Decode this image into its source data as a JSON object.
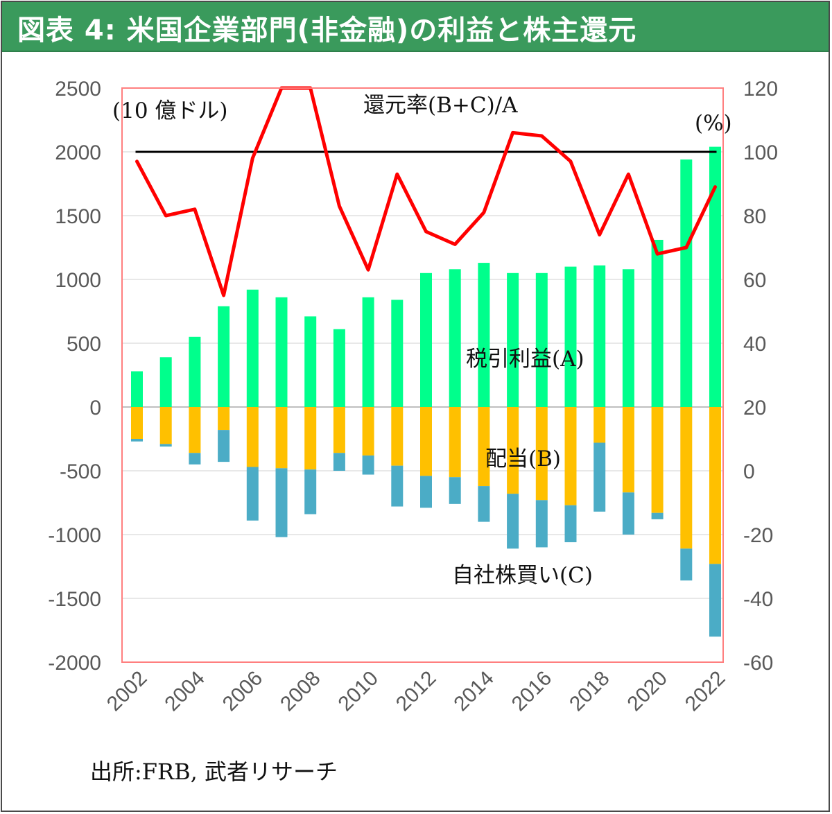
{
  "title": "図表 4: 米国企業部門(非金融)の利益と株主還元",
  "source": "出所:FRB, 武者リサーチ",
  "colors": {
    "title_bg": "#3a9a5c",
    "profit": "#00ff8c",
    "dividend": "#ffc000",
    "buyback": "#4bacc6",
    "ratio_line": "#ff0000",
    "reference_line": "#000000",
    "plot_border": "#ff7f7f"
  },
  "chart_data": {
    "type": "bar",
    "stacked": true,
    "x": [
      2002,
      2003,
      2004,
      2005,
      2006,
      2007,
      2008,
      2009,
      2010,
      2011,
      2012,
      2013,
      2014,
      2015,
      2016,
      2017,
      2018,
      2019,
      2020,
      2021,
      2022
    ],
    "x_tick_labels": [
      "2002",
      "2004",
      "2006",
      "2008",
      "2010",
      "2012",
      "2014",
      "2016",
      "2018",
      "2020",
      "2022"
    ],
    "left_axis": {
      "unit": "(10 億ドル)",
      "ylim": [
        -2000,
        2500
      ],
      "ticks": [
        "2500",
        "2000",
        "1500",
        "1000",
        "500",
        "0",
        "-500",
        "-1000",
        "-1500",
        "-2000"
      ]
    },
    "right_axis": {
      "unit": "(%)",
      "ylim": [
        -60,
        120
      ],
      "ticks": [
        "120",
        "100",
        "80",
        "60",
        "40",
        "20",
        "0",
        "-20",
        "-40",
        "-60"
      ]
    },
    "series": [
      {
        "name": "税引利益(A)",
        "type": "bar",
        "axis": "left",
        "values": [
          280,
          390,
          550,
          790,
          920,
          860,
          710,
          610,
          860,
          840,
          1050,
          1080,
          1130,
          1050,
          1050,
          1100,
          1110,
          1080,
          1310,
          1940,
          2040
        ]
      },
      {
        "name": "配当(B)",
        "type": "bar",
        "axis": "left",
        "values": [
          -250,
          -290,
          -360,
          -180,
          -470,
          -480,
          -490,
          -360,
          -380,
          -460,
          -540,
          -550,
          -620,
          -680,
          -730,
          -770,
          -280,
          -670,
          -830,
          -1110,
          -1230
        ]
      },
      {
        "name": "自社株買い(C)",
        "type": "bar",
        "axis": "left",
        "values": [
          -20,
          -20,
          -90,
          -250,
          -420,
          -540,
          -350,
          -140,
          -150,
          -320,
          -250,
          -210,
          -280,
          -430,
          -370,
          -290,
          -540,
          -330,
          -50,
          -250,
          -570
        ]
      },
      {
        "name": "還元率(B+C)/A",
        "type": "line",
        "axis": "right",
        "values": [
          97,
          80,
          82,
          55,
          98,
          120,
          120,
          83,
          63,
          93,
          75,
          71,
          81,
          106,
          105,
          97,
          74,
          93,
          68,
          70,
          89
        ]
      },
      {
        "name": "100%",
        "type": "hline",
        "axis": "right",
        "value": 100
      }
    ],
    "grid": true,
    "legend": "none"
  }
}
